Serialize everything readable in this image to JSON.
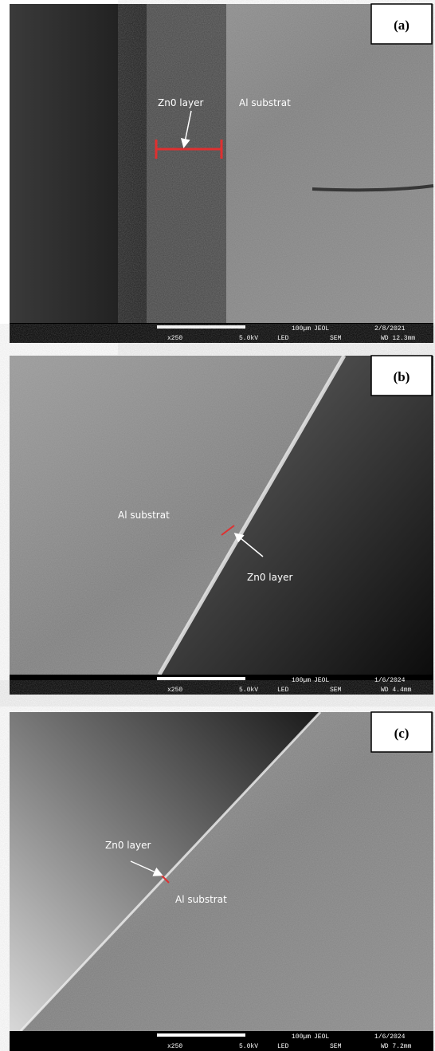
{
  "panels": [
    {
      "label": "(a)",
      "annotations": [
        "Zn0 layer",
        "Al substrat"
      ],
      "info": {
        "scale": "100µm",
        "maker": "JEOL",
        "date": "2/8/2021",
        "magnification": "x250",
        "voltage": "5.0kV",
        "detector": "LED",
        "mode": "SEM",
        "wd": "WD 12.3mm"
      }
    },
    {
      "label": "(b)",
      "annotations": [
        "Al substrat",
        "Zn0 layer"
      ],
      "info": {
        "scale": "100µm",
        "maker": "JEOL",
        "date": "1/6/2024",
        "magnification": "x250",
        "voltage": "5.0kV",
        "detector": "LED",
        "mode": "SEM",
        "wd": "WD 4.4mm"
      }
    },
    {
      "label": "(c)",
      "annotations": [
        "Zn0 layer",
        "Al substrat"
      ],
      "info": {
        "scale": "100µm",
        "maker": "JEOL",
        "date": "1/6/2024",
        "magnification": "x250",
        "voltage": "5.0kV",
        "detector": "LED",
        "mode": "SEM",
        "wd": "WD 7.2mm"
      }
    }
  ]
}
